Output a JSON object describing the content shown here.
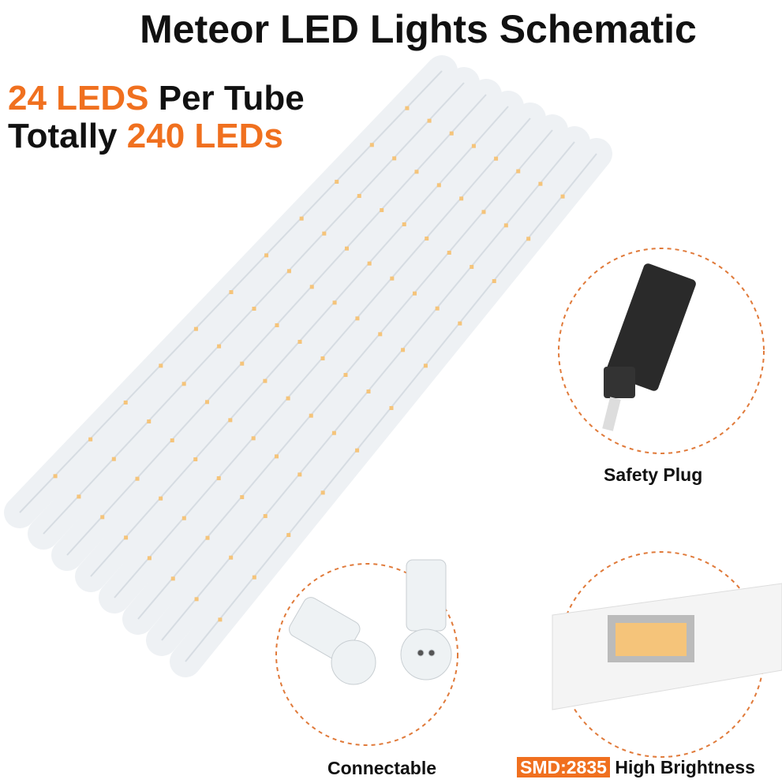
{
  "title": "Meteor LED Lights Schematic",
  "headline": {
    "line1_highlight": "24 LEDS",
    "line1_rest": " Per Tube",
    "line2_prefix": "Totally ",
    "line2_highlight": "240 LEDs"
  },
  "callouts": {
    "plug": "Safety Plug",
    "connector": "Connectable",
    "chip_label": "SMD:2835",
    "chip_rest": " High Brightness"
  },
  "colors": {
    "accent": "#f0701f",
    "led": "#f5c47a",
    "dashed_circle": "#e07a3a"
  }
}
